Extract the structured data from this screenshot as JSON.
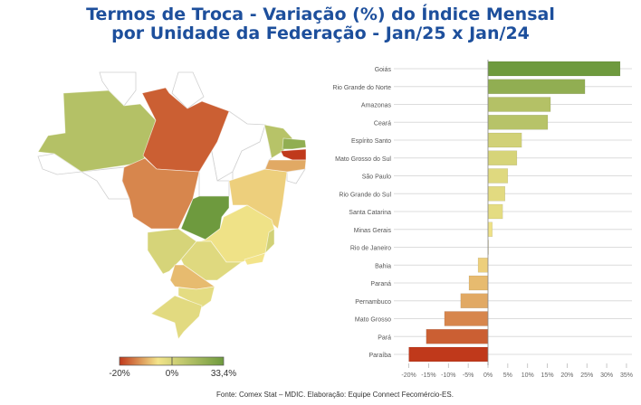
{
  "title_line1": "Termos de Troca - Variação (%) do Índice Mensal",
  "title_line2": "por Unidade da Federação - Jan/25 x Jan/24",
  "footer": "Fonte: Comex Stat – MDIC. Elaboração: Equipe Connect Fecomércio-ES.",
  "legend": {
    "min_label": "-20%",
    "mid_label": "0%",
    "max_label": "33,4%",
    "min": -20,
    "max": 33.4,
    "colors": {
      "low": "#c0391b",
      "mid": "#f3e48a",
      "high": "#6e9a3e"
    }
  },
  "chart_data": {
    "type": "bar",
    "orientation": "horizontal",
    "title": "Termos de Troca - Variação (%) do Índice Mensal por Unidade da Federação - Jan/25 x Jan/24",
    "categories": [
      "Goiás",
      "Rio Grande do Norte",
      "Amazonas",
      "Ceará",
      "Espírito Santo",
      "Mato Grosso do Sul",
      "São Paulo",
      "Rio Grande do Sul",
      "Santa Catarina",
      "Minas Gerais",
      "Rio de Janeiro",
      "Bahia",
      "Paraná",
      "Pernambuco",
      "Mato Grosso",
      "Pará",
      "Paraíba"
    ],
    "values": [
      33.4,
      24.5,
      15.8,
      15.1,
      8.5,
      7.3,
      5.0,
      4.3,
      3.7,
      1.1,
      0.0,
      -2.5,
      -4.8,
      -6.9,
      -11.0,
      -15.6,
      -20.0
    ],
    "xlim": [
      -20,
      35
    ],
    "xticks": [
      "-20%",
      "-15%",
      "-10%",
      "-5%",
      "0%",
      "5%",
      "10%",
      "15%",
      "20%",
      "25%",
      "30%",
      "35%"
    ],
    "xtick_values": [
      -20,
      -15,
      -10,
      -5,
      0,
      5,
      10,
      15,
      20,
      25,
      30,
      35
    ],
    "grid": true,
    "xlabel": "",
    "ylabel": ""
  }
}
